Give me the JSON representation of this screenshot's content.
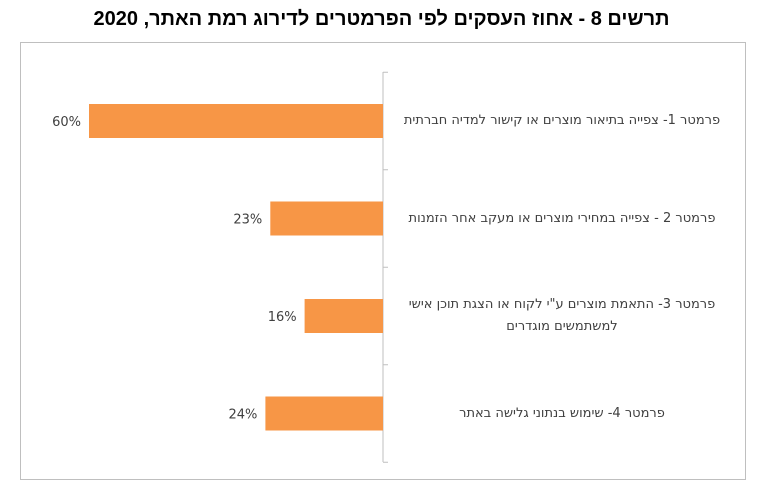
{
  "chart_data": {
    "type": "bar",
    "orientation": "horizontal",
    "title": "תרשים 8 - אחוז העסקים לפי הפרמטרים לדירוג רמת האתר, 2020",
    "categories": [
      "פרמטר 1-  צפייה בתיאור מוצרים או קישור למדיה חברתית",
      "פרמטר 2 - צפייה במחירי מוצרים או מעקב אחר הזמנות",
      "פרמטר 3- התאמת מוצרים ע\"י לקוח או הצגת תוכן אישי למשתמשים מוגדרים",
      "פרמטר 4- שימוש בנתוני גלישה באתר"
    ],
    "values": [
      60,
      23,
      16,
      24
    ],
    "value_labels": [
      "60%",
      "23%",
      "16%",
      "24%"
    ],
    "unit": "%",
    "xlim": [
      0,
      60
    ],
    "bar_color": "#F79646",
    "axis_color": "#BFBFBF",
    "grid": false,
    "direction": "right-to-left"
  }
}
